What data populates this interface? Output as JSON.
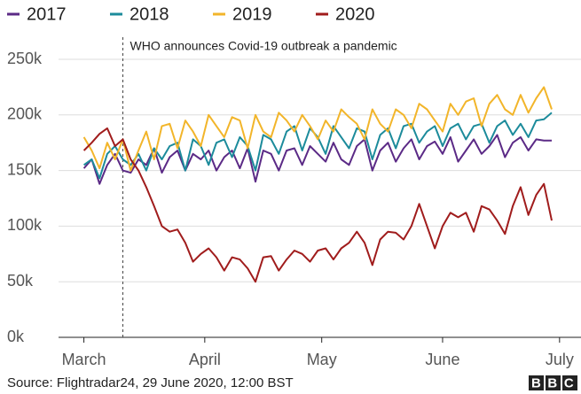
{
  "chart_data": {
    "type": "line",
    "x": [
      0,
      2,
      4,
      6,
      8,
      10,
      12,
      14,
      16,
      18,
      20,
      22,
      24,
      26,
      28,
      30,
      32,
      34,
      36,
      38,
      40,
      42,
      44,
      46,
      48,
      50,
      52,
      54,
      56,
      58,
      60,
      62,
      64,
      66,
      68,
      70,
      72,
      74,
      76,
      78,
      80,
      82,
      84,
      86,
      88,
      90,
      92,
      94,
      96,
      98,
      100,
      102,
      104,
      106,
      108,
      110,
      112,
      114,
      116,
      118,
      120
    ],
    "xlim": [
      -6.5,
      127.5
    ],
    "xticks": [
      {
        "value": 0,
        "label": "March"
      },
      {
        "value": 31,
        "label": "April"
      },
      {
        "value": 61,
        "label": "May"
      },
      {
        "value": 92,
        "label": "June"
      },
      {
        "value": 122,
        "label": "July"
      }
    ],
    "ylim": [
      0,
      250000
    ],
    "yticks": [
      {
        "value": 0,
        "label": "0k"
      },
      {
        "value": 50000,
        "label": "50k"
      },
      {
        "value": 100000,
        "label": "100k"
      },
      {
        "value": 150000,
        "label": "150k"
      },
      {
        "value": 200000,
        "label": "200k"
      },
      {
        "value": 250000,
        "label": "250k"
      }
    ],
    "grid": true,
    "legend": "top",
    "series": [
      {
        "name": "2017",
        "color": "#5b2a86",
        "values": [
          152000,
          160000,
          138000,
          155000,
          165000,
          150000,
          148000,
          160000,
          155000,
          170000,
          148000,
          162000,
          168000,
          150000,
          165000,
          160000,
          168000,
          150000,
          162000,
          168000,
          152000,
          170000,
          140000,
          168000,
          165000,
          150000,
          168000,
          170000,
          155000,
          172000,
          165000,
          158000,
          175000,
          160000,
          155000,
          172000,
          178000,
          150000,
          168000,
          175000,
          158000,
          170000,
          178000,
          160000,
          172000,
          176000,
          165000,
          180000,
          158000,
          168000,
          178000,
          165000,
          172000,
          182000,
          162000,
          175000,
          180000,
          168000,
          178000,
          177000,
          177000
        ]
      },
      {
        "name": "2018",
        "color": "#1c8b9b",
        "values": [
          155000,
          160000,
          143000,
          165000,
          172000,
          160000,
          155000,
          165000,
          150000,
          170000,
          160000,
          172000,
          175000,
          150000,
          178000,
          172000,
          155000,
          175000,
          178000,
          162000,
          180000,
          172000,
          150000,
          182000,
          178000,
          165000,
          185000,
          190000,
          168000,
          188000,
          180000,
          165000,
          190000,
          180000,
          170000,
          188000,
          185000,
          160000,
          182000,
          188000,
          170000,
          190000,
          192000,
          175000,
          185000,
          190000,
          172000,
          188000,
          192000,
          178000,
          190000,
          192000,
          175000,
          190000,
          195000,
          182000,
          192000,
          180000,
          195000,
          196000,
          202000
        ]
      },
      {
        "name": "2019",
        "color": "#f2b52a",
        "values": [
          180000,
          168000,
          152000,
          175000,
          160000,
          178000,
          150000,
          168000,
          185000,
          160000,
          190000,
          192000,
          170000,
          195000,
          185000,
          172000,
          200000,
          190000,
          180000,
          198000,
          195000,
          170000,
          200000,
          185000,
          180000,
          202000,
          195000,
          185000,
          200000,
          190000,
          178000,
          195000,
          185000,
          205000,
          198000,
          192000,
          178000,
          205000,
          192000,
          185000,
          205000,
          200000,
          188000,
          210000,
          205000,
          195000,
          185000,
          210000,
          200000,
          212000,
          215000,
          190000,
          210000,
          218000,
          205000,
          200000,
          218000,
          202000,
          215000,
          225000,
          205000
        ]
      },
      {
        "name": "2020",
        "color": "#a01c1c",
        "values": [
          168000,
          175000,
          183000,
          188000,
          172000,
          178000,
          160000,
          150000,
          135000,
          118000,
          100000,
          95000,
          97000,
          85000,
          68000,
          75000,
          80000,
          72000,
          60000,
          72000,
          70000,
          62000,
          50000,
          72000,
          73000,
          60000,
          70000,
          78000,
          75000,
          68000,
          78000,
          80000,
          70000,
          80000,
          85000,
          95000,
          85000,
          65000,
          88000,
          95000,
          94000,
          88000,
          100000,
          120000,
          100000,
          80000,
          100000,
          112000,
          108000,
          112000,
          95000,
          118000,
          115000,
          105000,
          93000,
          118000,
          135000,
          110000,
          128000,
          138000,
          105000
        ]
      }
    ],
    "annotation": {
      "x": 10,
      "text": "WHO announces Covid-19 outbreak a pandemic"
    },
    "source": "Source: Flightradar24, 29 June 2020, 12:00 BST",
    "logo": "BBC"
  }
}
